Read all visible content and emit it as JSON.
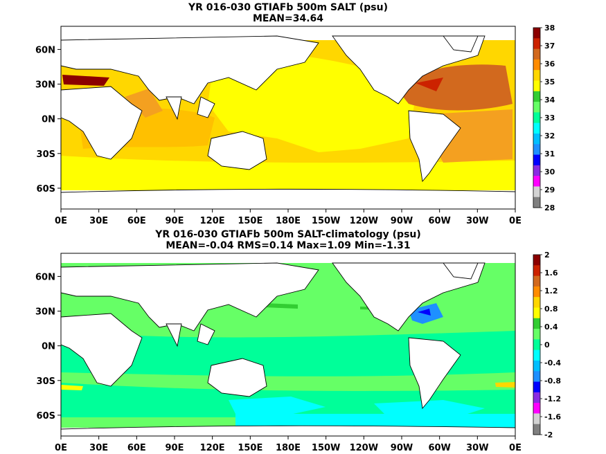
{
  "panels": [
    {
      "title": "YR 016-030 GTIAFb 500m SALT (psu)",
      "subtitle": "MEAN=34.64",
      "lat_labels": [
        "60N",
        "30N",
        "0N",
        "30S",
        "60S"
      ],
      "lon_labels": [
        "0E",
        "30E",
        "60E",
        "90E",
        "120E",
        "150E",
        "180E",
        "150W",
        "120W",
        "90W",
        "60W",
        "30W",
        "0E"
      ],
      "colorbar": {
        "labels": [
          "38",
          "37",
          "36",
          "35",
          "34",
          "33",
          "32",
          "31",
          "30",
          "29",
          "28"
        ],
        "colors": [
          "#8b0000",
          "#cc2200",
          "#d2691e",
          "#ff8c00",
          "#ffd700",
          "#ffff00",
          "#32cd32",
          "#66ff66",
          "#00ff99",
          "#00ffff",
          "#00bfff",
          "#1e90ff",
          "#0000ff",
          "#8a2be2",
          "#ff00ff",
          "#d3d3d3",
          "#808080"
        ]
      }
    },
    {
      "title": "YR 016-030 GTIAFb 500m SALT-climatology (psu)",
      "subtitle": "MEAN=-0.04   RMS=0.14   Max=1.09   Min=-1.31",
      "lat_labels": [
        "60N",
        "30N",
        "0N",
        "30S",
        "60S"
      ],
      "lon_labels": [
        "0E",
        "30E",
        "60E",
        "90E",
        "120E",
        "150E",
        "180E",
        "150W",
        "120W",
        "90W",
        "60W",
        "30W",
        "0E"
      ],
      "colorbar": {
        "labels": [
          "2",
          "1.6",
          "1.2",
          "0.8",
          "0.4",
          "0",
          "-0.4",
          "-0.8",
          "-1.2",
          "-1.6",
          "-2"
        ],
        "colors": [
          "#8b0000",
          "#cc2200",
          "#d2691e",
          "#ff8c00",
          "#ffd700",
          "#ffff00",
          "#32cd32",
          "#66ff66",
          "#00ff99",
          "#00ffff",
          "#00bfff",
          "#1e90ff",
          "#0000ff",
          "#8a2be2",
          "#ff00ff",
          "#d3d3d3",
          "#808080"
        ]
      }
    }
  ]
}
